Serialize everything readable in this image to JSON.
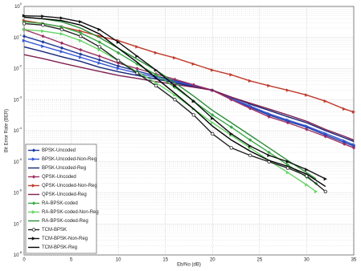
{
  "chart_data": {
    "type": "line",
    "x_label": "Eb/No (dB)",
    "y_label": "Bit Error Rate (BER)",
    "xlim": [
      0,
      35
    ],
    "xticks": [
      0,
      5,
      10,
      15,
      20,
      25,
      30,
      35
    ],
    "ylim": [
      1e-08,
      1
    ],
    "log_y": true,
    "grid": true,
    "legend": "lower left",
    "yticks": [
      {
        "value": 1e-08,
        "label": "10",
        "exp": "-8"
      },
      {
        "value": 1e-07,
        "label": "10",
        "exp": "-7"
      },
      {
        "value": 1e-06,
        "label": "10",
        "exp": "-6"
      },
      {
        "value": 1e-05,
        "label": "10",
        "exp": "-5"
      },
      {
        "value": 0.0001,
        "label": "10",
        "exp": "-4"
      },
      {
        "value": 0.001,
        "label": "10",
        "exp": "-3"
      },
      {
        "value": 0.01,
        "label": "10",
        "exp": "-2"
      },
      {
        "value": 0.1,
        "label": "10",
        "exp": "-1"
      },
      {
        "value": 1,
        "label": "10",
        "exp": "0"
      }
    ],
    "series": [
      {
        "name": "BPSK-Uncoded",
        "color": "#1f3a9e",
        "marker": "diamond",
        "x": [
          0,
          2,
          4,
          6,
          8,
          10,
          12,
          14,
          16,
          18,
          20,
          22,
          24,
          26,
          28,
          30,
          32,
          34,
          35
        ],
        "values": [
          0.11,
          0.072,
          0.046,
          0.029,
          0.019,
          0.012,
          0.0083,
          0.0058,
          0.0041,
          0.0029,
          0.002,
          0.0011,
          0.00057,
          0.00032,
          0.0002,
          0.00013,
          7.2e-05,
          4.2e-05,
          3.2e-05
        ]
      },
      {
        "name": "BPSK-Uncoded-Non-Reg",
        "color": "#3356d6",
        "marker": "triangle",
        "x": [
          0,
          2,
          4,
          6,
          8,
          10,
          12,
          14,
          16,
          18,
          20,
          22,
          24,
          26,
          28,
          30,
          32,
          34,
          35
        ],
        "values": [
          0.079,
          0.052,
          0.035,
          0.023,
          0.015,
          0.01,
          0.0072,
          0.0052,
          0.0038,
          0.0028,
          0.002,
          0.0011,
          0.00062,
          0.00035,
          0.00022,
          0.00014,
          8.1e-05,
          4.7e-05,
          3.5e-05
        ]
      },
      {
        "name": "BPSK-Uncoded-Reg",
        "color": "#16267a",
        "marker": "none",
        "x": [
          0,
          2,
          4,
          6,
          8,
          10,
          12,
          14,
          16,
          18,
          20,
          22,
          24,
          26,
          28,
          30,
          32,
          34,
          35
        ],
        "values": [
          0.05,
          0.035,
          0.024,
          0.017,
          0.011,
          0.0079,
          0.006,
          0.0046,
          0.0035,
          0.0026,
          0.002,
          0.0012,
          0.00071,
          0.00045,
          0.00028,
          0.00018,
          0.0001,
          5.9e-05,
          4.5e-05
        ]
      },
      {
        "name": "QPSK-Uncoded",
        "color": "#9c2f62",
        "marker": "diamond",
        "x": [
          0,
          2,
          4,
          6,
          8,
          10,
          12,
          14,
          16,
          18,
          20,
          22,
          24,
          26,
          28,
          30,
          32,
          34,
          35
        ],
        "values": [
          0.18,
          0.11,
          0.066,
          0.04,
          0.025,
          0.015,
          0.01,
          0.0067,
          0.0045,
          0.003,
          0.002,
          0.001,
          0.00052,
          0.00028,
          0.00018,
          0.00011,
          6.5e-05,
          3.7e-05,
          2.8e-05
        ]
      },
      {
        "name": "QPSK-Uncoded-Non-Reg",
        "color": "#c0392b",
        "marker": "triangle",
        "x": [
          0,
          2,
          4,
          6,
          8,
          10,
          12,
          14,
          16,
          18,
          20,
          22,
          24,
          26,
          28,
          30,
          32,
          34,
          35
        ],
        "values": [
          0.35,
          0.28,
          0.22,
          0.16,
          0.11,
          0.079,
          0.05,
          0.032,
          0.022,
          0.014,
          0.0089,
          0.0063,
          0.004,
          0.0028,
          0.002,
          0.0014,
          0.00089,
          0.0005,
          0.0004
        ]
      },
      {
        "name": "QPSK-Uncoded-Reg",
        "color": "#7e2050",
        "marker": "none",
        "x": [
          0,
          2,
          4,
          6,
          8,
          10,
          12,
          14,
          16,
          18,
          20,
          22,
          24,
          26,
          28,
          30,
          32,
          34,
          35
        ],
        "values": [
          0.028,
          0.021,
          0.015,
          0.011,
          0.0081,
          0.006,
          0.0048,
          0.0038,
          0.0031,
          0.0025,
          0.002,
          0.0012,
          0.00077,
          0.0005,
          0.00032,
          0.0002,
          0.00011,
          6.6e-05,
          5e-05
        ]
      },
      {
        "name": "RA-BPSK-coded",
        "color": "#39a845",
        "marker": "diamond",
        "x": [
          0,
          2,
          4,
          6,
          8,
          10,
          12,
          14,
          16,
          18,
          20,
          22,
          24,
          26,
          28,
          30,
          31
        ],
        "values": [
          0.32,
          0.28,
          0.22,
          0.14,
          0.071,
          0.032,
          0.014,
          0.0063,
          0.0025,
          0.00089,
          0.00032,
          0.00013,
          5e-05,
          2e-05,
          7.9e-06,
          3.2e-06,
          2e-06
        ]
      },
      {
        "name": "RA-BPSK-coded-Non-Reg",
        "color": "#66d466",
        "marker": "triangle",
        "x": [
          0,
          2,
          4,
          6,
          8,
          10,
          12,
          14,
          16,
          18,
          20,
          22,
          24,
          26,
          28,
          30,
          31
        ],
        "values": [
          0.18,
          0.16,
          0.13,
          0.079,
          0.04,
          0.018,
          0.0079,
          0.0035,
          0.0014,
          0.0005,
          0.00018,
          7.1e-05,
          2.8e-05,
          1.1e-05,
          4.5e-06,
          1.8e-06,
          1.1e-06
        ]
      },
      {
        "name": "RA-BPSK-coded-Reg",
        "color": "#2c8f3a",
        "marker": "none",
        "x": [
          0,
          2,
          4,
          6,
          8,
          10,
          12,
          14,
          16,
          18,
          20,
          22,
          24,
          26,
          28,
          30,
          31
        ],
        "values": [
          0.45,
          0.4,
          0.32,
          0.2,
          0.1,
          0.045,
          0.02,
          0.0089,
          0.0035,
          0.0013,
          0.00045,
          0.00018,
          7.1e-05,
          2.8e-05,
          1.1e-05,
          4.5e-06,
          2.8e-06
        ]
      },
      {
        "name": "TCM-BPSK",
        "color": "#222222",
        "marker": "circle",
        "x": [
          0,
          2,
          4,
          6,
          8,
          10,
          12,
          14,
          16,
          18,
          20,
          22,
          24,
          26,
          28,
          30,
          32
        ],
        "values": [
          0.28,
          0.25,
          0.18,
          0.11,
          0.05,
          0.018,
          0.0071,
          0.0028,
          0.001,
          0.00032,
          7.9e-05,
          2.8e-05,
          1.6e-05,
          1e-05,
          6.3e-06,
          3.5e-06,
          1.1e-06
        ]
      },
      {
        "name": "TCM-BPSK-Non-Reg",
        "color": "#111111",
        "marker": "triangle",
        "x": [
          0,
          2,
          4,
          6,
          8,
          10,
          12,
          14,
          16,
          18,
          20,
          22,
          24,
          26,
          28,
          30,
          32
        ],
        "values": [
          0.5,
          0.48,
          0.42,
          0.32,
          0.18,
          0.071,
          0.025,
          0.0089,
          0.0028,
          0.00089,
          0.00025,
          7.9e-05,
          3.2e-05,
          1.6e-05,
          1e-05,
          5.6e-06,
          2.8e-06
        ]
      },
      {
        "name": "TCM-BPSK-Reg",
        "color": "#000000",
        "marker": "none",
        "x": [
          0,
          2,
          4,
          6,
          8,
          10,
          12,
          14,
          16,
          18,
          20,
          22,
          24,
          26,
          28,
          30,
          32
        ],
        "values": [
          0.45,
          0.4,
          0.35,
          0.25,
          0.13,
          0.045,
          0.016,
          0.005,
          0.0016,
          0.0005,
          0.00014,
          5e-05,
          2.2e-05,
          1.1e-05,
          7.1e-06,
          4e-06,
          1.6e-06
        ]
      }
    ]
  }
}
